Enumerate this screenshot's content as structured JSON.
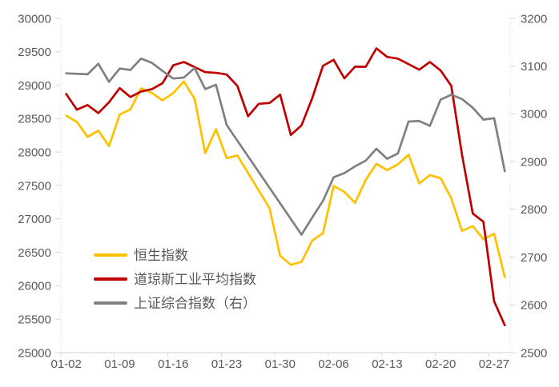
{
  "chart_data": {
    "type": "line",
    "categories": [
      "01-02",
      "01-03",
      "01-06",
      "01-07",
      "01-08",
      "01-09",
      "01-10",
      "01-13",
      "01-14",
      "01-15",
      "01-16",
      "01-17",
      "01-20",
      "01-21",
      "01-22",
      "01-23",
      "01-24",
      "01-27",
      "01-28",
      "01-29",
      "01-30",
      "01-31",
      "02-03",
      "02-04",
      "02-05",
      "02-06",
      "02-07",
      "02-10",
      "02-11",
      "02-12",
      "02-13",
      "02-14",
      "02-17",
      "02-18",
      "02-19",
      "02-20",
      "02-21",
      "02-24",
      "02-25",
      "02-26",
      "02-27",
      "02-28"
    ],
    "x_axis": {
      "tick_indices": [
        0,
        5,
        10,
        15,
        20,
        25,
        30,
        35,
        40
      ],
      "tick_labels": [
        "01-02",
        "01-09",
        "01-16",
        "01-23",
        "01-30",
        "02-06",
        "02-13",
        "02-20",
        "02-27"
      ]
    },
    "left_axis": {
      "min": 25000,
      "max": 30000,
      "step": 500,
      "tick_labels": [
        "30000",
        "29500",
        "29000",
        "28500",
        "28000",
        "27500",
        "27000",
        "26500",
        "26000",
        "25500",
        "25000"
      ]
    },
    "right_axis": {
      "min": 2500,
      "max": 3200,
      "step": 100,
      "tick_labels": [
        "3200",
        "3100",
        "3000",
        "2900",
        "2800",
        "2700",
        "2600",
        "2500"
      ]
    },
    "series": [
      {
        "id": "hang-seng",
        "name": "恒生指数",
        "axis": "left",
        "color": "#FFC000",
        "values": [
          28544,
          28452,
          28226,
          28322,
          28088,
          28561,
          28638,
          28955,
          28885,
          28774,
          28883,
          29056,
          28796,
          27985,
          28341,
          27909,
          27950,
          null,
          null,
          27161,
          26449,
          26313,
          26357,
          26676,
          26787,
          27494,
          27404,
          27241,
          27584,
          27824,
          27730,
          27816,
          27960,
          27530,
          27656,
          27609,
          27309,
          26821,
          26893,
          26696,
          26779,
          26130
        ]
      },
      {
        "id": "dow-jones-industrial-average",
        "name": "道琼斯工业平均指数",
        "axis": "left",
        "color": "#C00000",
        "values": [
          28869,
          28635,
          28703,
          28584,
          28745,
          28957,
          28824,
          28907,
          28940,
          29030,
          29298,
          29348,
          null,
          29196,
          29186,
          29160,
          28990,
          28536,
          28723,
          28734,
          28859,
          28256,
          28400,
          28808,
          29291,
          29380,
          29103,
          29277,
          29276,
          29551,
          29423,
          29398,
          null,
          29232,
          29348,
          29220,
          28992,
          27961,
          27081,
          26958,
          25767,
          25409
        ]
      },
      {
        "id": "shanghai-composite-right",
        "name": "上证综合指数（右）",
        "axis": "right",
        "color": "#808080",
        "values": [
          3085,
          3084,
          3083,
          3105,
          3067,
          3095,
          3092,
          3116,
          3107,
          3090,
          3074,
          3076,
          3096,
          3052,
          3061,
          2977,
          null,
          null,
          null,
          null,
          null,
          null,
          2747,
          2783,
          2818,
          2867,
          2876,
          2890,
          2902,
          2927,
          2906,
          2917,
          2984,
          2985,
          2975,
          3030,
          3040,
          3031,
          3013,
          2988,
          2991,
          2880
        ]
      }
    ],
    "legend": {
      "position": "inside-bottom-left",
      "entries": [
        "恒生指数",
        "道琼斯工业平均指数",
        "上证综合指数（右）"
      ]
    },
    "grid": false,
    "background": "#ffffff",
    "axis_line_color": "#D9D9D9",
    "label_color": "#595959",
    "line_width": 2.7
  }
}
